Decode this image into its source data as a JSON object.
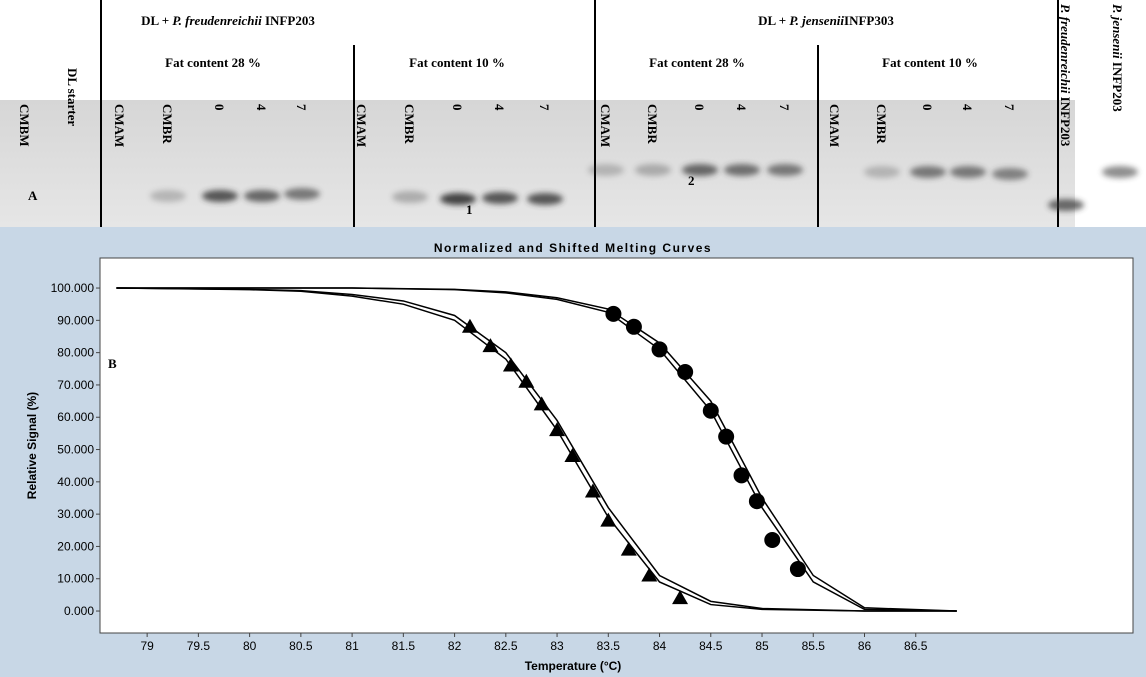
{
  "panel_a": {
    "label": "A",
    "groups": [
      {
        "prefix": "DL + ",
        "species": "P. freudenreichii",
        "strain": " INFP203"
      },
      {
        "prefix": "DL + ",
        "species": "P. jensenii",
        "strain": "INFP303"
      }
    ],
    "fat_contents": [
      "Fat content 28 %",
      "Fat content 10 %",
      "Fat content 28 %",
      "Fat content 10 %"
    ],
    "lanes": [
      "CMBM",
      "DL starter",
      "CMAM",
      "CMBR",
      "0",
      "4",
      "7",
      "CMAM",
      "CMBR",
      "0",
      "4",
      "7",
      "CMAM",
      "CMBR",
      "0",
      "4",
      "7",
      "CMAM",
      "CMBR",
      "0",
      "4",
      "7"
    ],
    "references": [
      {
        "species": "P. freudenreichii",
        "strain": " INFP203"
      },
      {
        "species": "P. jensenii",
        "strain": " INFP203"
      }
    ],
    "band_labels": [
      "1",
      "2"
    ]
  },
  "chart_data": {
    "type": "line",
    "title": "Normalized and Shifted Melting Curves",
    "panel_label": "B",
    "x_label": "Temperature (°C)",
    "y_label": "Relative Signal (%)",
    "xlim": [
      78.54,
      88.62
    ],
    "ylim": [
      -6.8,
      109.3
    ],
    "xticks": [
      79,
      79.5,
      80,
      80.5,
      81,
      81.5,
      82,
      82.5,
      83,
      83.5,
      84,
      84.5,
      85,
      85.5,
      86,
      86.5
    ],
    "yticks": [
      {
        "value": 0,
        "label": "0.000"
      },
      {
        "value": 10,
        "label": "10.000"
      },
      {
        "value": 20,
        "label": "20.000"
      },
      {
        "value": 30,
        "label": "30.000"
      },
      {
        "value": 40,
        "label": "40.000"
      },
      {
        "value": 50,
        "label": "50.000"
      },
      {
        "value": 60,
        "label": "60.000"
      },
      {
        "value": 70,
        "label": "70.000"
      },
      {
        "value": 80,
        "label": "80.000"
      },
      {
        "value": 90,
        "label": "90.000"
      },
      {
        "value": 100,
        "label": "100.000"
      }
    ],
    "series": [
      {
        "color": "#000000",
        "marker": "none",
        "x": [
          78.7,
          80,
          80.5,
          81,
          81.5,
          82,
          82.5,
          83,
          83.5,
          84,
          84.5,
          85,
          86,
          86.9
        ],
        "values": [
          100,
          99.5,
          99,
          97.5,
          95,
          90,
          78,
          56,
          29,
          9,
          2,
          0.5,
          0,
          0
        ]
      },
      {
        "color": "#000000",
        "marker": "none",
        "x": [
          78.7,
          80,
          80.5,
          81,
          81.5,
          82,
          82.5,
          83,
          83.5,
          84,
          84.5,
          85,
          86,
          86.9
        ],
        "values": [
          100,
          99.6,
          99.2,
          98,
          96,
          91.5,
          80,
          59,
          32,
          11,
          3,
          0.8,
          0,
          0
        ]
      },
      {
        "color": "#000000",
        "marker": "none",
        "x": [
          78.7,
          81,
          82,
          82.5,
          83,
          83.5,
          84,
          84.5,
          85,
          85.5,
          86,
          86.9
        ],
        "values": [
          100,
          100,
          99.5,
          98.5,
          96.5,
          92.5,
          81,
          62,
          32,
          9,
          0.5,
          0
        ]
      },
      {
        "color": "#000000",
        "marker": "none",
        "x": [
          78.7,
          81,
          82,
          82.5,
          83,
          83.5,
          84,
          84.5,
          85,
          85.5,
          86,
          86.9
        ],
        "values": [
          100,
          100,
          99.6,
          98.8,
          97,
          93.5,
          83,
          65,
          35,
          11,
          1,
          0
        ]
      },
      {
        "color": "#000000",
        "marker": "triangle",
        "x": [
          82.15,
          82.35,
          82.55,
          82.7,
          82.85,
          83.0,
          83.15,
          83.35,
          83.5,
          83.7,
          83.9,
          84.2
        ],
        "values": [
          88,
          82,
          76,
          71,
          64,
          56,
          48,
          37,
          28,
          19,
          11,
          4
        ]
      },
      {
        "color": "#000000",
        "marker": "circle",
        "x": [
          83.55,
          83.75,
          84.0,
          84.25,
          84.5,
          84.65,
          84.8,
          84.95,
          85.1,
          85.35
        ],
        "values": [
          92,
          88,
          81,
          74,
          62,
          54,
          42,
          34,
          22,
          13
        ]
      }
    ]
  }
}
